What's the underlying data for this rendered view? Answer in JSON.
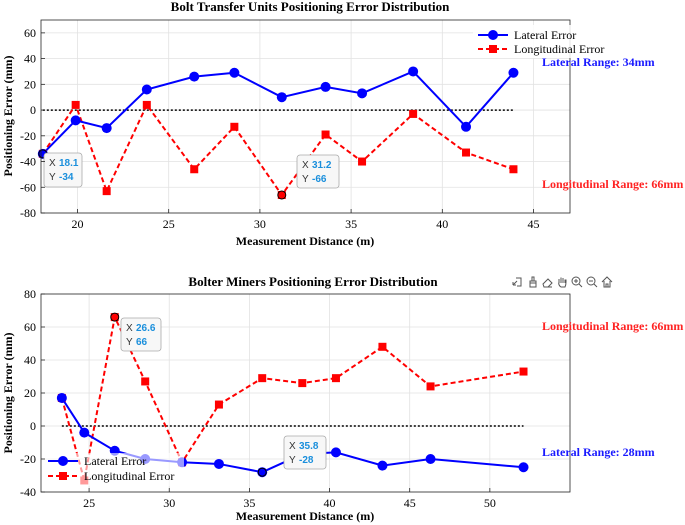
{
  "colors": {
    "lateral": "#0000ff",
    "longitudinal": "#ff0000",
    "grid": "#e2e2e2",
    "axis": "#262626"
  },
  "toolbar": {
    "icons": [
      "export-icon",
      "brush-icon",
      "eraser-icon",
      "pan-icon",
      "zoom-in-icon",
      "zoom-out-icon",
      "home-icon"
    ]
  },
  "chart_data": [
    {
      "type": "line",
      "title": "Bolt Transfer Units Positioning Error Distribution",
      "xlabel": "Measurement Distance (m)",
      "ylabel": "Positioning Error (mm)",
      "xlim": [
        18,
        47
      ],
      "ylim": [
        -80,
        70
      ],
      "xticks": [
        "20",
        "25",
        "30",
        "35",
        "40",
        "45"
      ],
      "yticks": [
        "-80",
        "-60",
        "-40",
        "-20",
        "0",
        "20",
        "40",
        "60"
      ],
      "grid": true,
      "zero_line": true,
      "legend_position": "top-right",
      "series": [
        {
          "name": "Lateral Error",
          "style": "solid",
          "marker": "circle",
          "x": [
            18.1,
            19.9,
            21.6,
            23.8,
            26.4,
            28.6,
            31.2,
            33.6,
            35.6,
            38.4,
            41.3,
            43.9
          ],
          "y": [
            -34,
            -8,
            -14,
            16,
            26,
            29,
            10,
            18,
            13,
            30,
            -13,
            29
          ]
        },
        {
          "name": "Longitudinal Error",
          "style": "dashed",
          "marker": "square",
          "x": [
            18.1,
            19.9,
            21.6,
            23.8,
            26.4,
            28.6,
            31.2,
            33.6,
            35.6,
            38.4,
            41.3,
            43.9
          ],
          "y": [
            -34,
            4,
            -63,
            4,
            -46,
            -13,
            -66,
            -19,
            -40,
            -3,
            -33,
            -46
          ]
        }
      ],
      "annotations": [
        {
          "text": "Lateral Range: 34mm",
          "color": "lateral"
        },
        {
          "text": "Longitudinal Range: 66mm",
          "color": "longitudinal"
        }
      ],
      "datatips": [
        {
          "x_label": "X",
          "x_value": "18.1",
          "y_label": "Y",
          "y_value": "-34"
        },
        {
          "x_label": "X",
          "x_value": "31.2",
          "y_label": "Y",
          "y_value": "-66"
        }
      ]
    },
    {
      "type": "line",
      "title": "Bolter Miners Positioning Error Distribution",
      "xlabel": "Measurement Distance (m)",
      "ylabel": "Positioning Error (mm)",
      "xlim": [
        22,
        55
      ],
      "ylim": [
        -40,
        80
      ],
      "xticks": [
        "25",
        "30",
        "35",
        "40",
        "45",
        "50"
      ],
      "yticks": [
        "-40",
        "-20",
        "0",
        "20",
        "40",
        "60",
        "80"
      ],
      "grid": true,
      "zero_line": true,
      "legend_position": "bottom-left",
      "series": [
        {
          "name": "Lateral Error",
          "style": "solid",
          "marker": "circle",
          "x": [
            23.3,
            24.7,
            26.6,
            28.5,
            30.8,
            33.1,
            35.8,
            38.3,
            40.4,
            43.3,
            46.3,
            52.1
          ],
          "y": [
            17,
            -4,
            -15,
            -20,
            -22,
            -23,
            -28,
            -17,
            -16,
            -24,
            -20,
            -25
          ]
        },
        {
          "name": "Longitudinal Error",
          "style": "dashed",
          "marker": "square",
          "x": [
            23.3,
            24.7,
            26.6,
            28.5,
            30.8,
            33.1,
            35.8,
            38.3,
            40.4,
            43.3,
            46.3,
            52.1
          ],
          "y": [
            17,
            -33,
            66,
            27,
            -22,
            13,
            29,
            26,
            29,
            48,
            24,
            33
          ]
        }
      ],
      "annotations": [
        {
          "text": "Longitudinal Range: 66mm",
          "color": "longitudinal"
        },
        {
          "text": "Lateral Range: 28mm",
          "color": "lateral"
        }
      ],
      "datatips": [
        {
          "x_label": "X",
          "x_value": "26.6",
          "y_label": "Y",
          "y_value": "66"
        },
        {
          "x_label": "X",
          "x_value": "35.8",
          "y_label": "Y",
          "y_value": "-28"
        }
      ]
    }
  ]
}
